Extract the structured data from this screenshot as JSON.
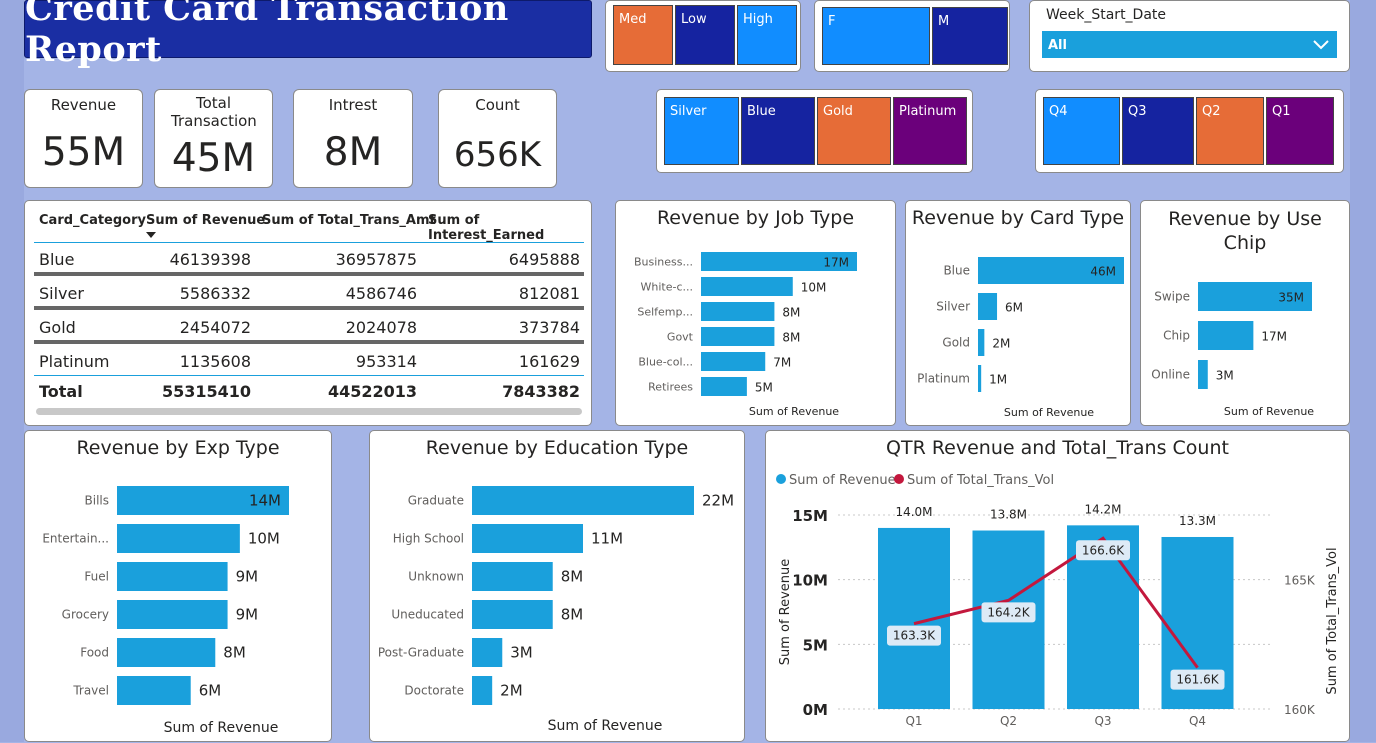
{
  "report_title": "Credit Card Transaction Report",
  "slicers": {
    "income": [
      "Med",
      "Low",
      "High"
    ],
    "gender": [
      "F",
      "M"
    ],
    "card": [
      "Silver",
      "Blue",
      "Gold",
      "Platinum"
    ],
    "quarter": [
      "Q4",
      "Q3",
      "Q2",
      "Q1"
    ],
    "week": {
      "label": "Week_Start_Date",
      "selected": "All",
      "icon": "chevron-down-icon"
    }
  },
  "colors": {
    "dark_blue": "#1523a0",
    "light_blue": "#118dff",
    "orange": "#e66c37",
    "purple": "#6b007b",
    "bar": "#1aa0dc",
    "line": "#c3183d"
  },
  "kpis": [
    {
      "label": "Revenue",
      "value": "55M"
    },
    {
      "label": "Total Transaction",
      "value": "45M"
    },
    {
      "label": "Intrest",
      "value": "8M"
    },
    {
      "label": "Count",
      "value": "656K"
    }
  ],
  "table": {
    "headers": [
      "Card_Category",
      "Sum of Revenue",
      "Sum of Total_Trans_Amt",
      "Sum of Interest_Earned"
    ],
    "rows": [
      [
        "Blue",
        "46139398",
        "36957875",
        "6495888"
      ],
      [
        "Silver",
        "5586332",
        "4586746",
        "812081"
      ],
      [
        "Gold",
        "2454072",
        "2024078",
        "373784"
      ],
      [
        "Platinum",
        "1135608",
        "953314",
        "161629"
      ]
    ],
    "total": [
      "Total",
      "55315410",
      "44522013",
      "7843382"
    ]
  },
  "chart_data": [
    {
      "type": "bar",
      "title": "Revenue by Job Type",
      "xlabel": "Sum of Revenue",
      "categories": [
        "Business...",
        "White-c...",
        "Selfemp...",
        "Govt",
        "Blue-col...",
        "Retirees"
      ],
      "values": [
        17,
        10,
        8,
        8,
        7,
        5
      ],
      "labels": [
        "17M",
        "10M",
        "8M",
        "8M",
        "7M",
        "5M"
      ]
    },
    {
      "type": "bar",
      "title": "Revenue by Card Type",
      "xlabel": "Sum of Revenue",
      "categories": [
        "Blue",
        "Silver",
        "Gold",
        "Platinum"
      ],
      "values": [
        46,
        6,
        2,
        1
      ],
      "labels": [
        "46M",
        "6M",
        "2M",
        "1M"
      ]
    },
    {
      "type": "bar",
      "title": "Revenue by Use Chip",
      "xlabel": "Sum of Revenue",
      "categories": [
        "Swipe",
        "Chip",
        "Online"
      ],
      "values": [
        35,
        17,
        3
      ],
      "labels": [
        "35M",
        "17M",
        "3M"
      ]
    },
    {
      "type": "bar",
      "title": "Revenue by Exp Type",
      "xlabel": "Sum of Revenue",
      "categories": [
        "Bills",
        "Entertain...",
        "Fuel",
        "Grocery",
        "Food",
        "Travel"
      ],
      "values": [
        14,
        10,
        9,
        9,
        8,
        6
      ],
      "labels": [
        "14M",
        "10M",
        "9M",
        "9M",
        "8M",
        "6M"
      ]
    },
    {
      "type": "bar",
      "title": "Revenue by Education Type",
      "xlabel": "Sum of Revenue",
      "categories": [
        "Graduate",
        "High School",
        "Unknown",
        "Uneducated",
        "Post-Graduate",
        "Doctorate"
      ],
      "values": [
        22,
        11,
        8,
        8,
        3,
        2
      ],
      "labels": [
        "22M",
        "11M",
        "8M",
        "8M",
        "3M",
        "2M"
      ]
    },
    {
      "type": "bar+line",
      "title": "QTR Revenue and Total_Trans Count",
      "categories": [
        "Q1",
        "Q2",
        "Q3",
        "Q4"
      ],
      "series": [
        {
          "name": "Sum of Revenue",
          "values": [
            14.0,
            13.8,
            14.2,
            13.3
          ],
          "labels": [
            "14.0M",
            "13.8M",
            "14.2M",
            "13.3M"
          ]
        },
        {
          "name": "Sum of Total_Trans_Vol",
          "values": [
            163.3,
            164.2,
            166.6,
            161.6
          ],
          "labels": [
            "163.3K",
            "164.2K",
            "166.6K",
            "161.6K"
          ]
        }
      ],
      "ylabel": "Sum of Revenue",
      "y2label": "Sum of Total_Trans_Vol",
      "ylim": [
        0,
        15
      ],
      "y2lim": [
        160,
        167.5
      ],
      "yticks": [
        "0M",
        "5M",
        "10M",
        "15M"
      ],
      "y2ticks": [
        "160K",
        "165K"
      ]
    }
  ]
}
